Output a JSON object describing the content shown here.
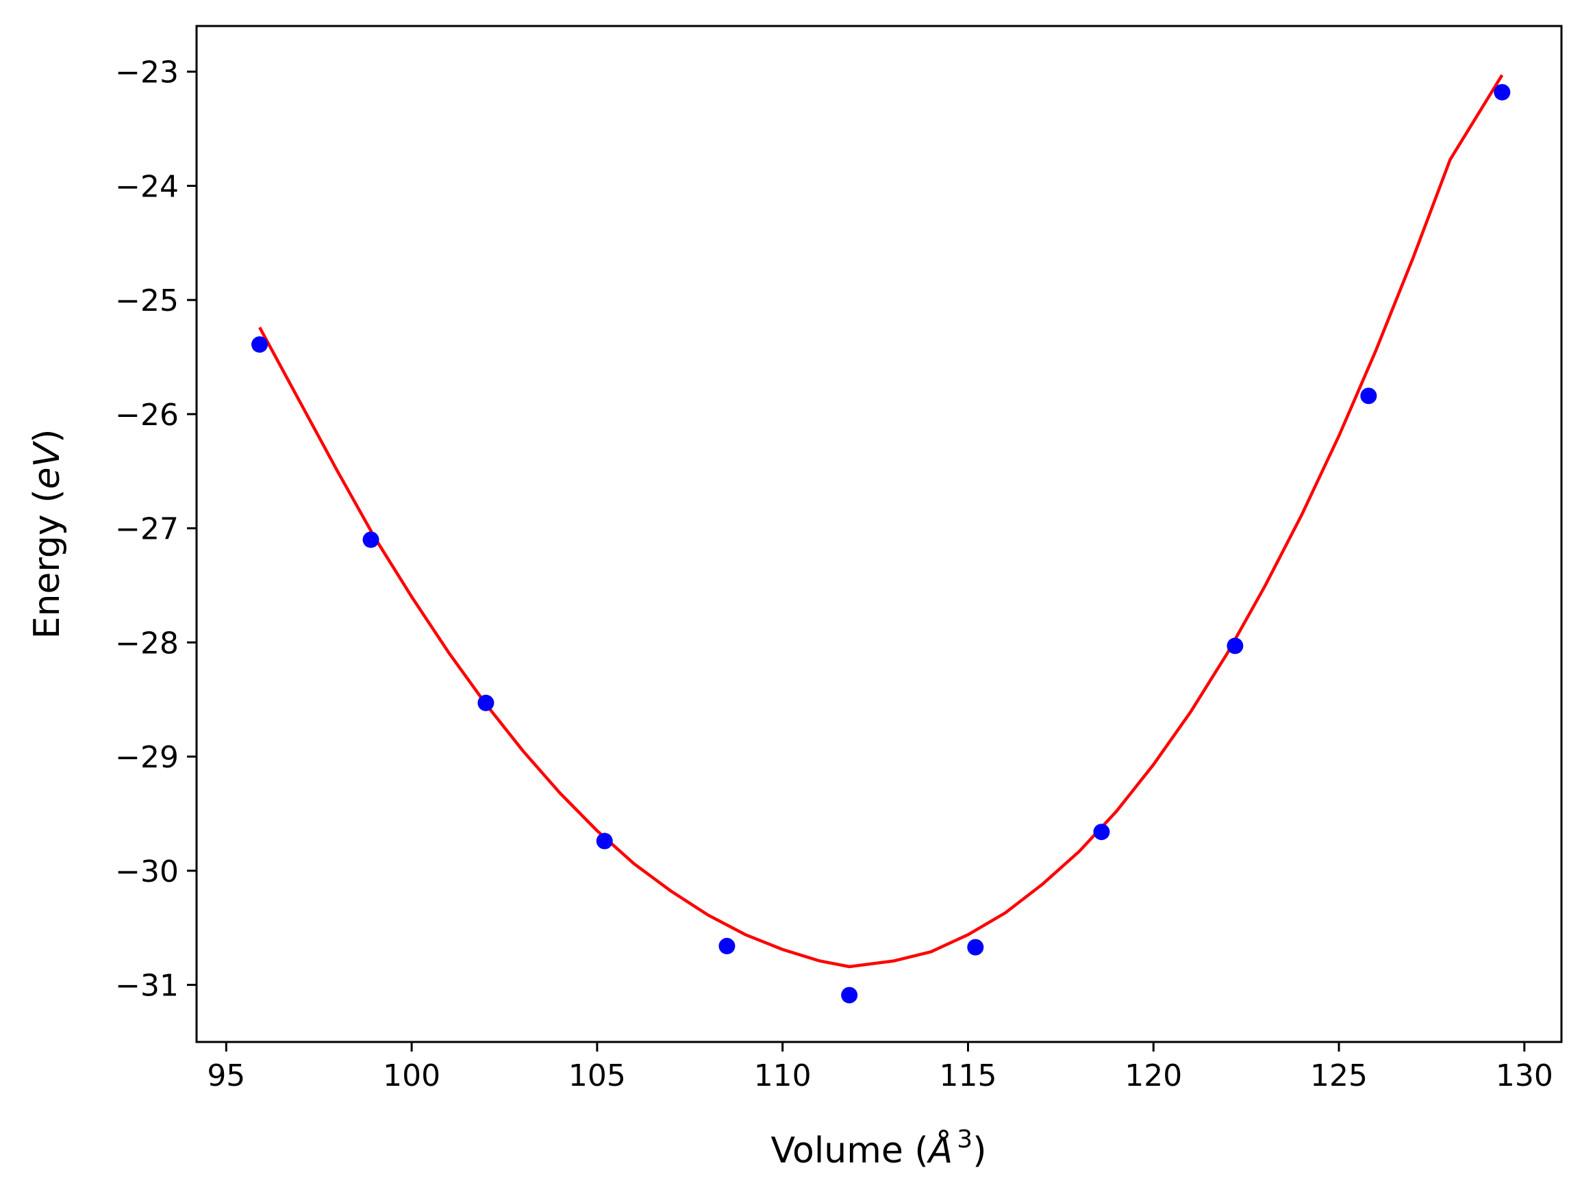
{
  "chart_data": {
    "type": "scatter",
    "title": "",
    "xlabel": "Volume",
    "xlabel_unit": "Å",
    "xlabel_exponent": "3",
    "ylabel": "Energy",
    "ylabel_unit": "eV",
    "xlim": [
      94.2,
      131
    ],
    "ylim": [
      -31.5,
      -22.6
    ],
    "x_ticks": [
      95,
      100,
      105,
      110,
      115,
      120,
      125,
      130
    ],
    "x_tick_labels": [
      "95",
      "100",
      "105",
      "110",
      "115",
      "120",
      "125",
      "130"
    ],
    "y_ticks": [
      -31,
      -30,
      -29,
      -28,
      -27,
      -26,
      -25,
      -24,
      -23
    ],
    "y_tick_labels": [
      "−31",
      "−30",
      "−29",
      "−28",
      "−27",
      "−26",
      "−25",
      "−24",
      "−23"
    ],
    "grid": false,
    "legend": "none",
    "series": [
      {
        "kind": "points",
        "color": "#0000ff",
        "x": [
          95.9,
          98.9,
          102.0,
          105.2,
          108.5,
          111.8,
          115.2,
          118.6,
          122.2,
          125.8,
          129.4
        ],
        "y": [
          -25.39,
          -27.1,
          -28.53,
          -29.74,
          -30.66,
          -31.09,
          -30.67,
          -29.66,
          -28.03,
          -25.84,
          -23.18
        ]
      },
      {
        "kind": "fit-curve",
        "color": "#ff0000",
        "x": [
          95.9,
          97.0,
          98.0,
          99.0,
          100.0,
          101.0,
          102.0,
          103.0,
          104.0,
          105.0,
          106.0,
          107.0,
          108.0,
          109.0,
          110.0,
          111.0,
          111.8,
          113.0,
          114.0,
          115.0,
          116.0,
          117.0,
          118.0,
          119.0,
          120.0,
          121.0,
          122.0,
          123.0,
          124.0,
          125.0,
          126.0,
          127.0,
          128.0,
          129.4
        ],
        "y": [
          -25.24,
          -25.9,
          -26.5,
          -27.08,
          -27.6,
          -28.09,
          -28.54,
          -28.95,
          -29.32,
          -29.65,
          -29.94,
          -30.18,
          -30.39,
          -30.56,
          -30.69,
          -30.79,
          -30.84,
          -30.79,
          -30.71,
          -30.56,
          -30.37,
          -30.12,
          -29.83,
          -29.48,
          -29.07,
          -28.61,
          -28.09,
          -27.51,
          -26.88,
          -26.19,
          -25.44,
          -24.63,
          -23.77,
          -23.03
        ]
      }
    ]
  },
  "colors": {
    "points": "#0000ff",
    "fit": "#ff0000",
    "axes": "#000000",
    "background": "#ffffff"
  }
}
